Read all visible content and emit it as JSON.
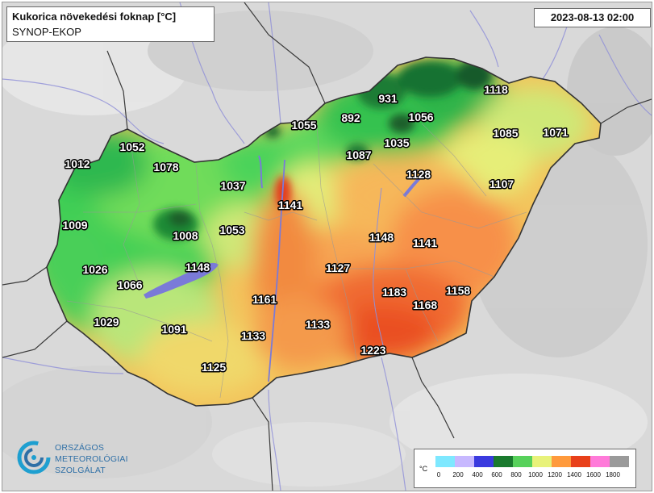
{
  "title": "Kukorica növekedési foknap [°C]",
  "subtitle": "SYNOP-EKOP",
  "datetime": "2023-08-13 02:00",
  "logo": {
    "line1": "ORSZÁGOS",
    "line2": "METEOROLÓGIAI",
    "line3": "SZOLGÁLAT"
  },
  "legend": {
    "unit": "°C",
    "ticks": [
      "0",
      "200",
      "400",
      "600",
      "800",
      "1000",
      "1200",
      "1400",
      "1600",
      "1800"
    ],
    "colors": [
      "#7ee8ff",
      "#c7b8ff",
      "#3a3adf",
      "#1a7a2e",
      "#57d15b",
      "#e8f27a",
      "#ff9a3c",
      "#e8401a",
      "#ff7ad9",
      "#9a9a9a"
    ]
  },
  "stations": [
    {
      "name": "station-1118",
      "value": "1118"
    },
    {
      "name": "station-931",
      "value": "931"
    },
    {
      "name": "station-892",
      "value": "892"
    },
    {
      "name": "station-1056",
      "value": "1056"
    },
    {
      "name": "station-1055",
      "value": "1055"
    },
    {
      "name": "station-1085",
      "value": "1085"
    },
    {
      "name": "station-1071",
      "value": "1071"
    },
    {
      "name": "station-1035",
      "value": "1035"
    },
    {
      "name": "station-1087",
      "value": "1087"
    },
    {
      "name": "station-1052",
      "value": "1052"
    },
    {
      "name": "station-1012",
      "value": "1012"
    },
    {
      "name": "station-1078",
      "value": "1078"
    },
    {
      "name": "station-1128",
      "value": "1128"
    },
    {
      "name": "station-1107",
      "value": "1107"
    },
    {
      "name": "station-1037",
      "value": "1037"
    },
    {
      "name": "station-1141a",
      "value": "1141"
    },
    {
      "name": "station-1009",
      "value": "1009"
    },
    {
      "name": "station-1008",
      "value": "1008"
    },
    {
      "name": "station-1053",
      "value": "1053"
    },
    {
      "name": "station-1148a",
      "value": "1148"
    },
    {
      "name": "station-1141b",
      "value": "1141"
    },
    {
      "name": "station-1026",
      "value": "1026"
    },
    {
      "name": "station-1148b",
      "value": "1148"
    },
    {
      "name": "station-1127",
      "value": "1127"
    },
    {
      "name": "station-1066",
      "value": "1066"
    },
    {
      "name": "station-1183",
      "value": "1183"
    },
    {
      "name": "station-1158",
      "value": "1158"
    },
    {
      "name": "station-1161",
      "value": "1161"
    },
    {
      "name": "station-1168",
      "value": "1168"
    },
    {
      "name": "station-1029",
      "value": "1029"
    },
    {
      "name": "station-1091",
      "value": "1091"
    },
    {
      "name": "station-1133a",
      "value": "1133"
    },
    {
      "name": "station-1133b",
      "value": "1133"
    },
    {
      "name": "station-1223",
      "value": "1223"
    },
    {
      "name": "station-1125",
      "value": "1125"
    }
  ],
  "colors": {
    "background": "#dcdcdc",
    "water": "#7a7ad8",
    "border": "#333333",
    "label_fill": "#ffffff",
    "label_stroke": "#000000"
  }
}
